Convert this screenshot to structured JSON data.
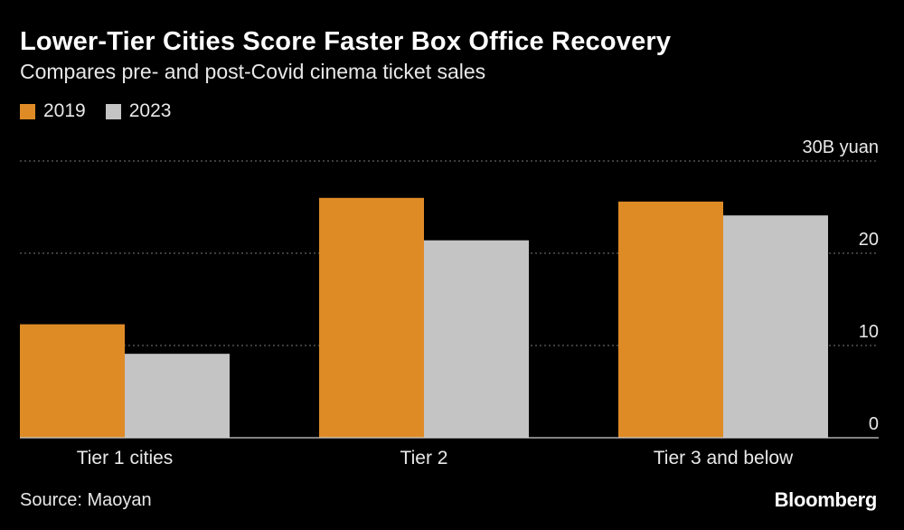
{
  "chart_data": {
    "type": "bar",
    "title": "Lower-Tier Cities Score Faster Box Office Recovery",
    "subtitle": "Compares pre- and post-Covid cinema ticket sales",
    "categories": [
      "Tier 1 cities",
      "Tier 2",
      "Tier 3 and below"
    ],
    "series": [
      {
        "name": "2019",
        "values": [
          12.3,
          26.0,
          25.6
        ],
        "color": "#de8b26"
      },
      {
        "name": "2023",
        "values": [
          9.1,
          21.4,
          24.1
        ],
        "color": "#c4c4c4"
      }
    ],
    "ylim": [
      0,
      30
    ],
    "yticks": [
      0,
      10,
      20,
      30
    ],
    "ytick_labels": [
      "0",
      "10",
      "20",
      "30B yuan"
    ],
    "grid": true,
    "legend": "top-left",
    "source": "Source: Maoyan",
    "brand": "Bloomberg"
  }
}
